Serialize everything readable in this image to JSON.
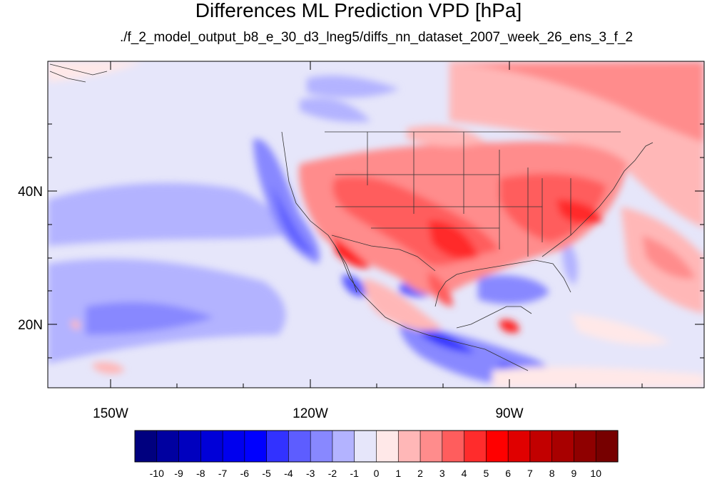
{
  "title": "Differences ML Prediction VPD [hPa]",
  "subtitle": "./f_2_model_output_b8_e_30_d3_lneg5/diffs_nn_dataset_2007_week_26_ens_3_f_2",
  "axes": {
    "lon_ticks": [
      "150W",
      "120W",
      "90W"
    ],
    "lat_ticks": [
      "40N",
      "20N"
    ]
  },
  "colorbar": {
    "labels": [
      "-10",
      "-9",
      "-8",
      "-7",
      "-6",
      "-5",
      "-4",
      "-3",
      "-2",
      "-1",
      "0",
      "1",
      "2",
      "3",
      "4",
      "5",
      "6",
      "7",
      "8",
      "9",
      "10"
    ],
    "colors": [
      "#00007f",
      "#0000a0",
      "#0000bf",
      "#0000d8",
      "#0000ee",
      "#0000ff",
      "#3232ff",
      "#5d5dff",
      "#8888ff",
      "#b3b3ff",
      "#e6e6fa",
      "#ffe8e8",
      "#ffb7b7",
      "#ff8c8c",
      "#ff5d5d",
      "#ff2c2c",
      "#ff0000",
      "#e00000",
      "#c20000",
      "#a80000",
      "#8f0000",
      "#770000"
    ]
  },
  "chart_data": {
    "type": "heatmap",
    "title": "Differences ML Prediction VPD [hPa]",
    "subtitle": "./f_2_model_output_b8_e_30_d3_lneg5/diffs_nn_dataset_2007_week_26_ens_3_f_2",
    "lon_range": [
      -160,
      -60
    ],
    "lat_range": [
      10,
      59
    ],
    "x_ticks": [
      "150W",
      "120W",
      "90W"
    ],
    "y_ticks": [
      "40N",
      "20N"
    ],
    "colorbar_range": [
      -10,
      10
    ]
  }
}
